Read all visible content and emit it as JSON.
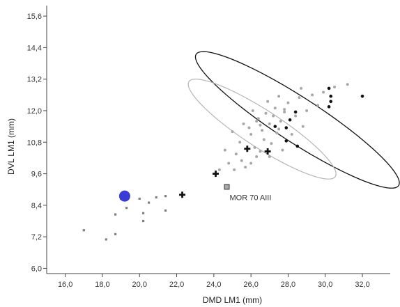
{
  "chart_data": {
    "type": "scatter",
    "title": "",
    "xlabel": "DMD LM1 (mm)",
    "ylabel": "DVL LM1 (mm)",
    "xlim": [
      15.0,
      33.5
    ],
    "ylim": [
      5.8,
      16.0
    ],
    "x_ticks": [
      16.0,
      18.0,
      20.0,
      22.0,
      24.0,
      26.0,
      28.0,
      30.0,
      32.0
    ],
    "y_ticks": [
      6.0,
      7.2,
      8.4,
      9.6,
      10.8,
      12.0,
      13.2,
      14.4,
      15.6
    ],
    "x_tick_labels": [
      "16,0",
      "18,0",
      "20,0",
      "22,0",
      "24,0",
      "26,0",
      "28,0",
      "30,0",
      "32,0"
    ],
    "y_tick_labels": [
      "6,0",
      "7,2",
      "8,4",
      "9,6",
      "10,8",
      "12,0",
      "13,2",
      "14,4",
      "15,6"
    ],
    "grid": false,
    "legend": false,
    "colors": {
      "black_series": "#111111",
      "gray_series": "#a8a8a8",
      "small_squares": "#808080",
      "highlight": "#3a3ad6",
      "ellipse_black": "#111111",
      "ellipse_gray": "#b5b5b5",
      "square_marker_fill": "#aaaaaa"
    },
    "series": [
      {
        "marker": "dot-black",
        "points": [
          [
            30.2,
            12.85
          ],
          [
            30.3,
            12.55
          ],
          [
            30.3,
            12.35
          ],
          [
            30.2,
            12.15
          ],
          [
            28.4,
            11.95
          ],
          [
            28.1,
            11.65
          ],
          [
            27.3,
            11.4
          ],
          [
            27.9,
            11.35
          ],
          [
            27.9,
            10.85
          ],
          [
            28.5,
            10.65
          ],
          [
            32.0,
            12.55
          ]
        ]
      },
      {
        "marker": "plus-black",
        "points": [
          [
            24.1,
            9.6
          ],
          [
            25.8,
            10.55
          ],
          [
            26.9,
            10.45
          ],
          [
            22.3,
            8.8
          ]
        ]
      },
      {
        "marker": "dot-gray",
        "points": [
          [
            25.0,
            11.2
          ],
          [
            25.4,
            10.8
          ],
          [
            25.6,
            11.5
          ],
          [
            26.0,
            11.1
          ],
          [
            26.2,
            10.6
          ],
          [
            26.4,
            11.7
          ],
          [
            26.6,
            11.25
          ],
          [
            26.7,
            10.9
          ],
          [
            26.8,
            11.9
          ],
          [
            27.0,
            11.5
          ],
          [
            27.1,
            10.75
          ],
          [
            27.3,
            12.1
          ],
          [
            27.4,
            11.15
          ],
          [
            27.6,
            11.6
          ],
          [
            27.7,
            10.5
          ],
          [
            27.8,
            11.95
          ],
          [
            28.0,
            12.3
          ],
          [
            28.2,
            11.1
          ],
          [
            28.4,
            11.8
          ],
          [
            28.6,
            12.5
          ],
          [
            28.8,
            11.4
          ],
          [
            29.0,
            12.0
          ],
          [
            29.3,
            12.6
          ],
          [
            29.6,
            12.2
          ],
          [
            29.9,
            12.7
          ],
          [
            30.5,
            12.9
          ],
          [
            31.2,
            13.0
          ],
          [
            25.2,
            10.35
          ],
          [
            25.5,
            10.1
          ],
          [
            26.0,
            10.0
          ],
          [
            26.3,
            10.25
          ],
          [
            24.8,
            10.0
          ],
          [
            24.6,
            10.5
          ],
          [
            25.7,
            9.85
          ],
          [
            26.5,
            10.45
          ],
          [
            26.9,
            12.35
          ],
          [
            27.5,
            12.55
          ],
          [
            28.7,
            12.85
          ],
          [
            26.1,
            12.0
          ],
          [
            25.9,
            11.35
          ],
          [
            26.5,
            11.45
          ],
          [
            24.3,
            9.75
          ],
          [
            25.1,
            9.75
          ],
          [
            27.2,
            11.8
          ],
          [
            27.5,
            11.3
          ],
          [
            27.0,
            10.25
          ],
          [
            27.8,
            12.05
          ],
          [
            26.3,
            11.6
          ]
        ]
      },
      {
        "marker": "square-small",
        "points": [
          [
            17.0,
            7.45
          ],
          [
            18.2,
            7.1
          ],
          [
            18.7,
            8.05
          ],
          [
            19.0,
            8.65
          ],
          [
            19.3,
            8.3
          ],
          [
            20.0,
            8.65
          ],
          [
            20.2,
            8.1
          ],
          [
            20.5,
            8.5
          ],
          [
            20.9,
            8.7
          ],
          [
            21.4,
            8.75
          ],
          [
            21.4,
            8.2
          ],
          [
            20.2,
            7.8
          ],
          [
            18.7,
            7.3
          ]
        ]
      }
    ],
    "highlight_point": {
      "x": 19.2,
      "y": 8.75,
      "label": ""
    },
    "labeled_point": {
      "x": 24.7,
      "y": 9.1,
      "label": "MOR 70 AIII"
    },
    "ellipses": [
      {
        "name": "",
        "stroke": "black",
        "cx": 28.5,
        "cy": 11.65,
        "rx": 6.5,
        "ry": 1.2,
        "angle_deg": -33
      },
      {
        "name": "",
        "stroke": "gray",
        "cx": 26.6,
        "cy": 11.3,
        "rx": 4.7,
        "ry": 1.0,
        "angle_deg": -33
      }
    ]
  }
}
